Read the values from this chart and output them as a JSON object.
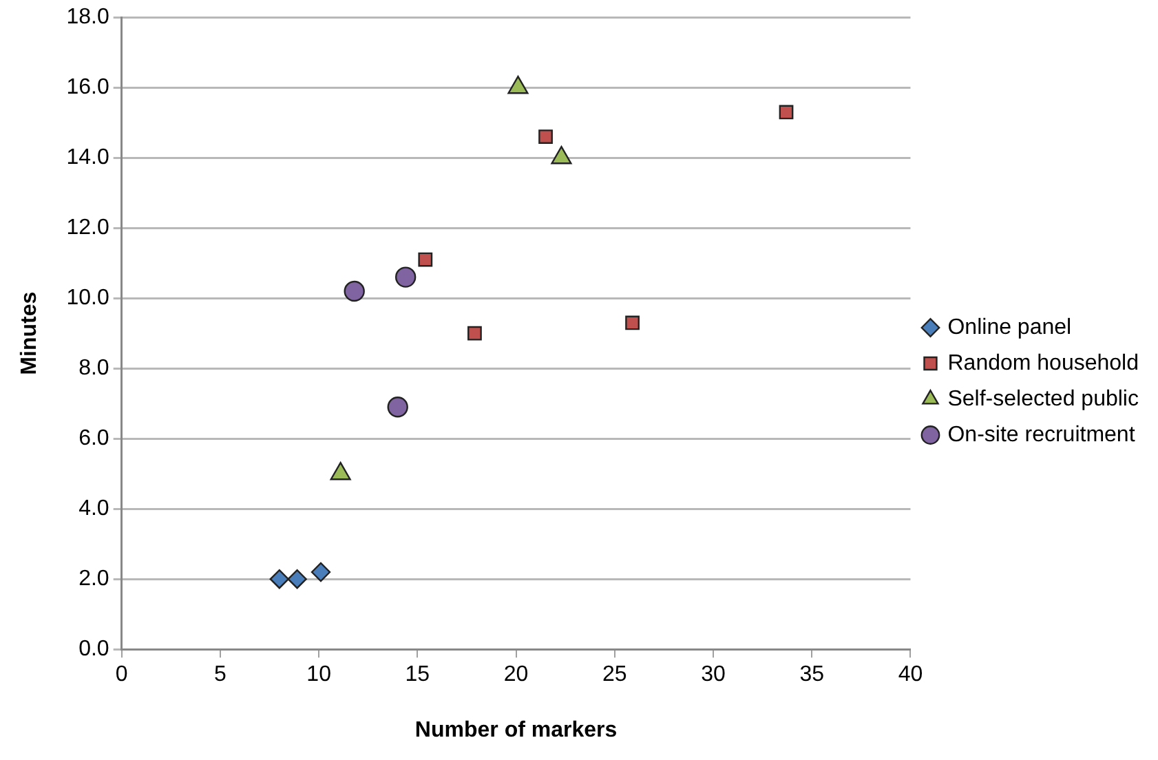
{
  "chart_data": {
    "type": "scatter",
    "xlabel": "Number of markers",
    "ylabel": "Minutes",
    "xlim": [
      0,
      40
    ],
    "xticks": [
      0,
      5,
      10,
      15,
      20,
      25,
      30,
      35,
      40
    ],
    "ylim": [
      0,
      18
    ],
    "yticks": [
      {
        "value": 0,
        "label": "0.0"
      },
      {
        "value": 2,
        "label": "2.0"
      },
      {
        "value": 4,
        "label": "4.0"
      },
      {
        "value": 6,
        "label": "6.0"
      },
      {
        "value": 8,
        "label": "8.0"
      },
      {
        "value": 10,
        "label": "10.0"
      },
      {
        "value": 12,
        "label": "12.0"
      },
      {
        "value": 14,
        "label": "14.0"
      },
      {
        "value": 16,
        "label": "16.0"
      },
      {
        "value": 18,
        "label": "18.0"
      }
    ],
    "grid": "y",
    "legend": "right",
    "series": [
      {
        "name": "Online panel",
        "color": "#4a7ebb",
        "marker": "diamond",
        "x": [
          8.0,
          8.9,
          10.1
        ],
        "values": [
          2.0,
          2.0,
          2.2
        ]
      },
      {
        "name": "Random household",
        "color": "#c0504d",
        "marker": "square",
        "x": [
          15.4,
          17.9,
          21.5,
          25.9,
          33.7
        ],
        "values": [
          11.1,
          9.0,
          14.6,
          9.3,
          15.3
        ]
      },
      {
        "name": "Self-selected public",
        "color": "#9bbb59",
        "marker": "triangle",
        "x": [
          11.1,
          20.1,
          22.3
        ],
        "values": [
          5.0,
          16.0,
          14.0
        ]
      },
      {
        "name": "On-site recruitment",
        "color": "#8064a2",
        "marker": "circle",
        "x": [
          11.8,
          14.0,
          14.4
        ],
        "values": [
          10.2,
          6.9,
          10.6
        ]
      }
    ]
  }
}
